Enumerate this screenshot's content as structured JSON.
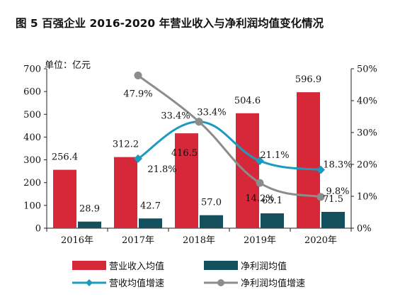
{
  "chart_data": {
    "title": "图 5 百强企业 2016-2020 年营业收入与净利润均值变化情况",
    "unit_label": "单位：亿元",
    "categories": [
      "2016年",
      "2017年",
      "2018年",
      "2019年",
      "2020年"
    ],
    "bar_series": [
      {
        "name": "营业收入均值",
        "color": "#d62839",
        "values": [
          256.4,
          312.2,
          416.5,
          504.6,
          596.9
        ]
      },
      {
        "name": "净利润均值",
        "color": "#134f5c",
        "values": [
          28.9,
          42.7,
          57.0,
          65.1,
          71.5
        ]
      }
    ],
    "line_series": [
      {
        "name": "营收均值增速",
        "color": "#1a9bbf",
        "marker": "diamond",
        "values": [
          null,
          21.8,
          33.4,
          21.1,
          18.3
        ]
      },
      {
        "name": "净利润均值增速",
        "color": "#8c8c8c",
        "marker": "circle",
        "values": [
          null,
          47.9,
          33.4,
          14.2,
          9.8
        ]
      }
    ],
    "bar_labels": [
      [
        "256.4",
        "312.2",
        "416.5",
        "504.6",
        "596.9"
      ],
      [
        "28.9",
        "42.7",
        "57.0",
        "65.1",
        "71.5"
      ]
    ],
    "line_labels": [
      [
        null,
        "21.8%",
        "33.4%",
        "21.1%",
        "18.3%"
      ],
      [
        null,
        "47.9%",
        "33.4%",
        "14.2%",
        "9.8%"
      ]
    ],
    "y_left": {
      "min": 0,
      "max": 700,
      "ticks": [
        "0",
        "100",
        "200",
        "300",
        "400",
        "500",
        "600",
        "700"
      ]
    },
    "y_right": {
      "min": 0,
      "max": 50,
      "ticks": [
        "0%",
        "10%",
        "20%",
        "30%",
        "40%",
        "50%"
      ]
    },
    "grid": false,
    "legend_position": "bottom"
  }
}
